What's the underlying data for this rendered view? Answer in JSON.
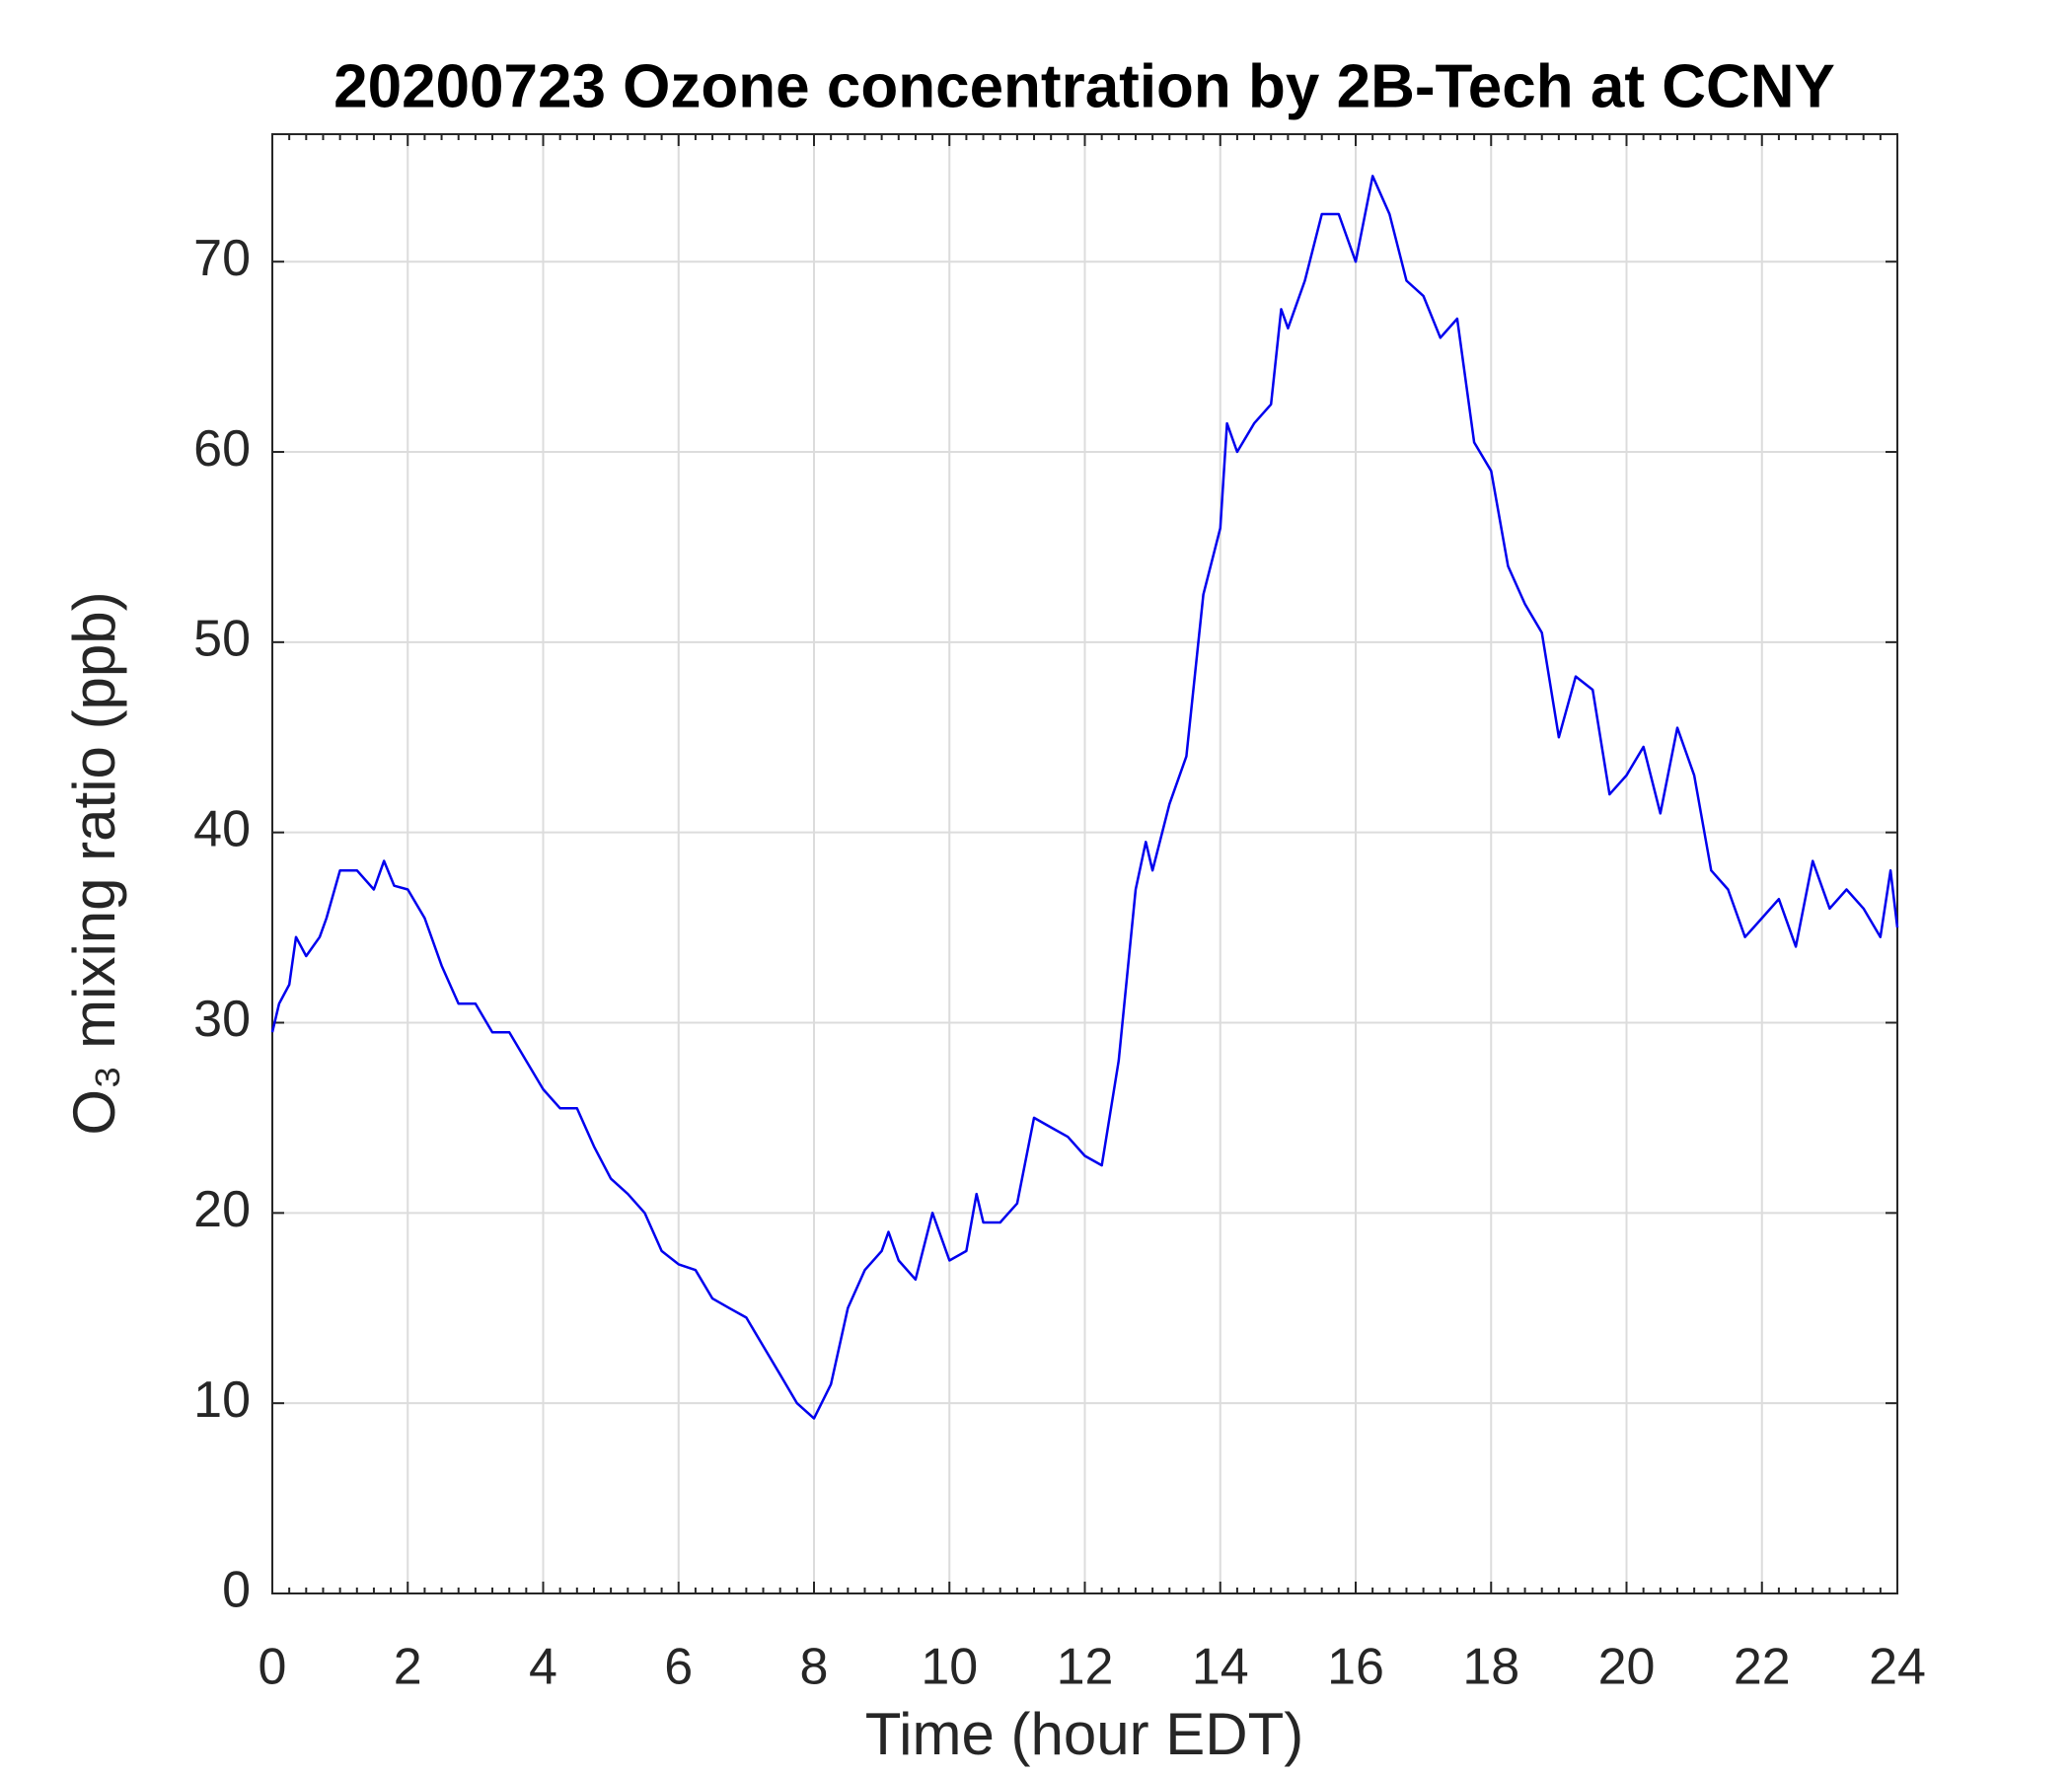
{
  "chart_data": {
    "type": "line",
    "title": "20200723 Ozone concentration by 2B-Tech at CCNY",
    "x_label": "Time (hour EDT)",
    "y_label": "O₃ mixing ratio (ppb)",
    "grid": true,
    "xlim": [
      0,
      24
    ],
    "xticks": [
      0,
      2,
      4,
      6,
      8,
      10,
      12,
      14,
      16,
      18,
      20,
      22,
      24
    ],
    "ylim": [
      0,
      76.7
    ],
    "yticks": [
      0,
      10,
      20,
      30,
      40,
      50,
      60,
      70
    ],
    "x": [
      0,
      0.1,
      0.25,
      0.35,
      0.5,
      0.7,
      0.8,
      1.0,
      1.25,
      1.5,
      1.65,
      1.8,
      2.0,
      2.25,
      2.5,
      2.75,
      3.0,
      3.25,
      3.5,
      3.75,
      4.0,
      4.25,
      4.5,
      4.75,
      5.0,
      5.25,
      5.5,
      5.75,
      6.0,
      6.25,
      6.5,
      6.75,
      7.0,
      7.25,
      7.5,
      7.75,
      8.0,
      8.25,
      8.5,
      8.75,
      9.0,
      9.1,
      9.25,
      9.5,
      9.75,
      10.0,
      10.25,
      10.4,
      10.5,
      10.75,
      11.0,
      11.25,
      11.5,
      11.75,
      12.0,
      12.25,
      12.5,
      12.75,
      12.9,
      13.0,
      13.25,
      13.5,
      13.75,
      14.0,
      14.1,
      14.25,
      14.5,
      14.75,
      14.9,
      15.0,
      15.25,
      15.5,
      15.75,
      16.0,
      16.25,
      16.5,
      16.75,
      17.0,
      17.25,
      17.5,
      17.75,
      18.0,
      18.25,
      18.5,
      18.75,
      19.0,
      19.25,
      19.5,
      19.75,
      20.0,
      20.25,
      20.5,
      20.75,
      21.0,
      21.25,
      21.5,
      21.75,
      22.0,
      22.25,
      22.5,
      22.75,
      23.0,
      23.25,
      23.5,
      23.75,
      23.9,
      24.0
    ],
    "series": [
      {
        "name": "O3",
        "color": "#0000ee",
        "values": [
          29.5,
          31,
          32,
          34.5,
          33.5,
          34.5,
          35.5,
          38,
          38,
          37,
          38.5,
          37.2,
          37,
          35.5,
          33,
          31,
          31,
          29.5,
          29.5,
          28,
          26.5,
          25.5,
          25.5,
          23.5,
          21.8,
          21,
          20,
          18,
          17.3,
          17,
          15.5,
          15,
          14.5,
          13,
          11.5,
          10,
          9.2,
          11,
          15,
          17,
          18,
          19,
          17.5,
          16.5,
          20,
          17.5,
          18,
          21,
          19.5,
          19.5,
          20.5,
          25,
          24.5,
          24,
          23,
          22.5,
          28,
          37,
          39.5,
          38,
          41.5,
          44,
          52.5,
          56,
          61.5,
          60,
          61.5,
          62.5,
          67.5,
          66.5,
          69,
          72.5,
          72.5,
          70,
          74.5,
          72.5,
          69,
          68.2,
          66,
          67,
          60.5,
          59,
          54,
          52,
          50.5,
          45,
          48.2,
          47.5,
          42,
          43,
          44.5,
          41,
          45.5,
          43,
          38,
          37,
          34.5,
          35.5,
          36.5,
          34,
          38.5,
          36,
          37,
          36,
          34.5,
          38,
          35
        ]
      }
    ]
  }
}
